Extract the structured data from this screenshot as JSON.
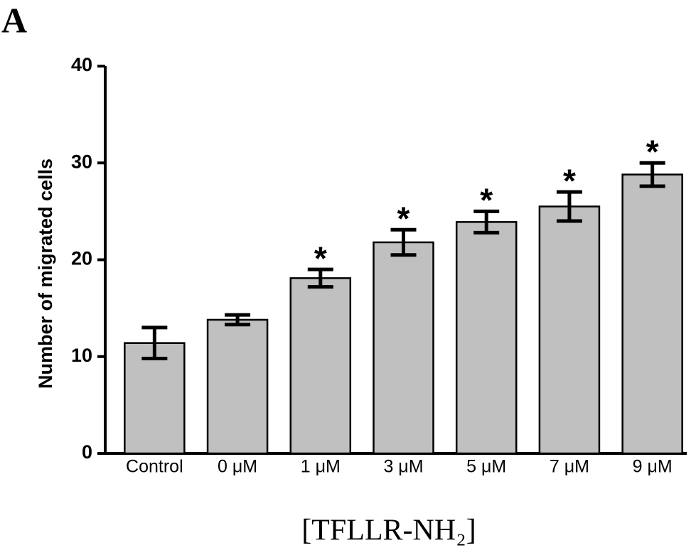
{
  "chart_data": {
    "type": "bar",
    "panel_label": "A",
    "y_label": "Number of migrated cells",
    "x_label": "[TFLLR-NH₂]",
    "categories": [
      "Control",
      "0 μM",
      "1 μM",
      "3 μM",
      "5 μM",
      "7 μM",
      "9 μM"
    ],
    "values": [
      11.4,
      13.8,
      18.1,
      21.8,
      23.9,
      25.5,
      28.8
    ],
    "errors": [
      1.6,
      0.5,
      0.9,
      1.3,
      1.1,
      1.5,
      1.2
    ],
    "significance": [
      null,
      null,
      "*",
      "*",
      "*",
      "*",
      "*"
    ],
    "color": "#c0c0c0",
    "ylim": [
      0,
      40
    ],
    "yticks": [
      0,
      10,
      20,
      30,
      40
    ],
    "grid": false
  }
}
